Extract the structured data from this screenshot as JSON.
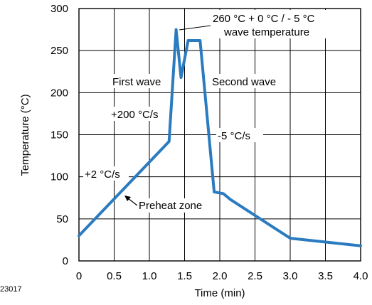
{
  "chart_data": {
    "type": "line",
    "title": "",
    "xlabel": "Time (min)",
    "ylabel": "Temperature (°C)",
    "xlim": [
      0,
      4.0
    ],
    "ylim": [
      0,
      300
    ],
    "x_ticks": [
      0,
      0.5,
      1.0,
      1.5,
      2.0,
      2.5,
      3.0,
      3.5,
      4.0
    ],
    "x_tick_labels": [
      "0",
      "0.5",
      "1.0",
      "1.5",
      "2.0",
      "2.5",
      "3.0",
      "3.5",
      "4.0"
    ],
    "y_ticks": [
      0,
      50,
      100,
      150,
      200,
      250,
      300
    ],
    "y_tick_labels": [
      "0",
      "50",
      "100",
      "150",
      "200",
      "250",
      "300"
    ],
    "grid": true,
    "line_color": "#2b7bc0",
    "series": [
      {
        "name": "",
        "x": [
          0,
          1.28,
          1.38,
          1.45,
          1.55,
          1.6,
          1.72,
          1.92,
          2.05,
          2.15,
          3.0,
          4.0
        ],
        "y": [
          30,
          142,
          275,
          218,
          262,
          262,
          262,
          82,
          80,
          73,
          27,
          18
        ]
      }
    ],
    "annotations": [
      {
        "id": "peak_spec_line1",
        "text": "260 °C + 0 °C / - 5 °C"
      },
      {
        "id": "peak_spec_line2",
        "text": "wave temperature"
      },
      {
        "id": "first_wave",
        "text": "First wave"
      },
      {
        "id": "second_wave",
        "text": "Second wave"
      },
      {
        "id": "rate_200",
        "text": "+200 °C/s"
      },
      {
        "id": "rate_minus5",
        "text": "-5 °C/s"
      },
      {
        "id": "rate_2",
        "text": "+2 °C/s"
      },
      {
        "id": "preheat",
        "text": "Preheat zone"
      }
    ],
    "figure_id": "23017"
  }
}
